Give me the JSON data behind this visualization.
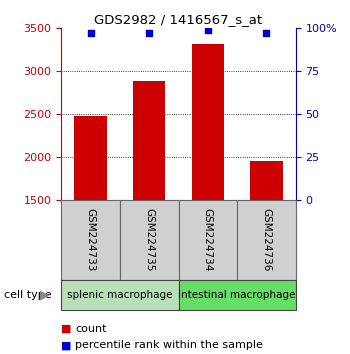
{
  "title": "GDS2982 / 1416567_s_at",
  "samples": [
    "GSM224733",
    "GSM224735",
    "GSM224734",
    "GSM224736"
  ],
  "counts": [
    2480,
    2890,
    3320,
    1960
  ],
  "percentiles": [
    97.0,
    97.5,
    99.0,
    97.0
  ],
  "ylim_left": [
    1500,
    3500
  ],
  "ylim_right": [
    0,
    100
  ],
  "yticks_left": [
    1500,
    2000,
    2500,
    3000,
    3500
  ],
  "yticks_right": [
    0,
    25,
    50,
    75,
    100
  ],
  "bar_color": "#cc0000",
  "dot_color": "#0000cc",
  "bar_width": 0.55,
  "group_labels": [
    "splenic macrophage",
    "intestinal macrophage"
  ],
  "group_colors": [
    "#b8e0b8",
    "#66dd66"
  ],
  "legend_items": [
    "count",
    "percentile rank within the sample"
  ],
  "left_axis_color": "#cc0000",
  "right_axis_color": "#0000cc",
  "xlabel_label": "cell type",
  "sample_box_color": "#d0d0d0",
  "sample_box_border": "#666666",
  "group_box_border": "#444444"
}
